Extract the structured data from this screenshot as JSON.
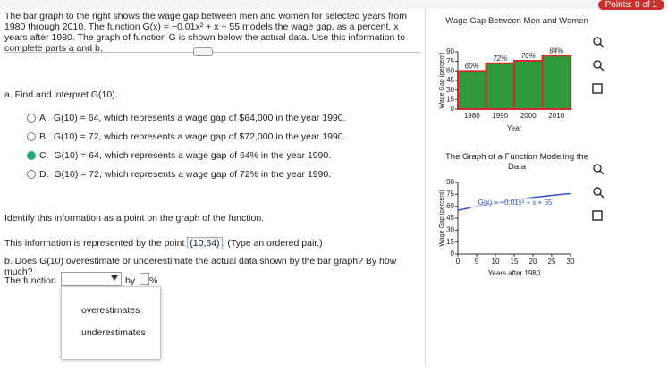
{
  "header": {
    "points": "Points: 0 of 1"
  },
  "question": {
    "intro": "The bar graph to the right shows the wage gap between men and women for selected years from 1980 through 2010. The function G(x) = −0.01x² + x + 55 models the wage gap, as a percent, x years after 1980. The graph of function G is shown below the actual data. Use this information to complete parts a and b.",
    "part_a": "a. Find and interpret G(10).",
    "choices": [
      {
        "letter": "A.",
        "text": "G(10) = 64, which represents a wage gap of $64,000 in the year 1990."
      },
      {
        "letter": "B.",
        "text": "G(10) = 72, which represents a wage gap of $72,000 in the year 1990."
      },
      {
        "letter": "C.",
        "text": "G(10) = 64, which represents a wage gap of 64% in the year 1990."
      },
      {
        "letter": "D.",
        "text": "G(10) = 72, which represents a wage gap of 72% in the year 1990."
      }
    ],
    "identify": "Identify this information as a point on the graph of the function.",
    "point_before": "This information is represented by the point",
    "point_answer": "(10,64)",
    "point_after": ". (Type an ordered pair.)",
    "part_b": "b. Does G(10) overestimate or underestimate the actual data shown by the bar graph? By how much?",
    "function_label": "The function",
    "by": "by",
    "percent": "%",
    "dropdown_options": [
      "overestimates",
      "underestimates"
    ]
  },
  "chart_data": [
    {
      "type": "bar",
      "title": "Wage Gap Between Men and Women",
      "xlabel": "Year",
      "ylabel": "Wage Gap (percent)",
      "categories": [
        "1980",
        "1990",
        "2000",
        "2010"
      ],
      "values": [
        60,
        72,
        76,
        84
      ],
      "value_labels": [
        "60%",
        "72%",
        "76%",
        "84%"
      ],
      "colors": [
        "#2e9a3a",
        "#2e9a3a",
        "#2e9a3a",
        "#2e9a3a"
      ],
      "edge_color": "#d42a2a",
      "ylim": [
        0,
        90
      ],
      "yticks": [
        0,
        15,
        30,
        45,
        60,
        75,
        90
      ]
    },
    {
      "type": "line",
      "title": "The Graph of a Function Modeling the Data",
      "xlabel": "Years after 1980",
      "ylabel": "Wage Gap (percent)",
      "annotation": "G(x) = −0.01x² + x + 55",
      "color": "#2a4fd0",
      "x": [
        0,
        5,
        10,
        15,
        20,
        25,
        30
      ],
      "values": [
        55,
        59.75,
        64,
        67.75,
        71,
        73.75,
        76
      ],
      "xlim": [
        0,
        30
      ],
      "xticks": [
        0,
        5,
        10,
        15,
        20,
        25,
        30
      ],
      "ylim": [
        0,
        90
      ],
      "yticks": [
        0,
        15,
        30,
        45,
        60,
        75,
        90
      ]
    }
  ]
}
